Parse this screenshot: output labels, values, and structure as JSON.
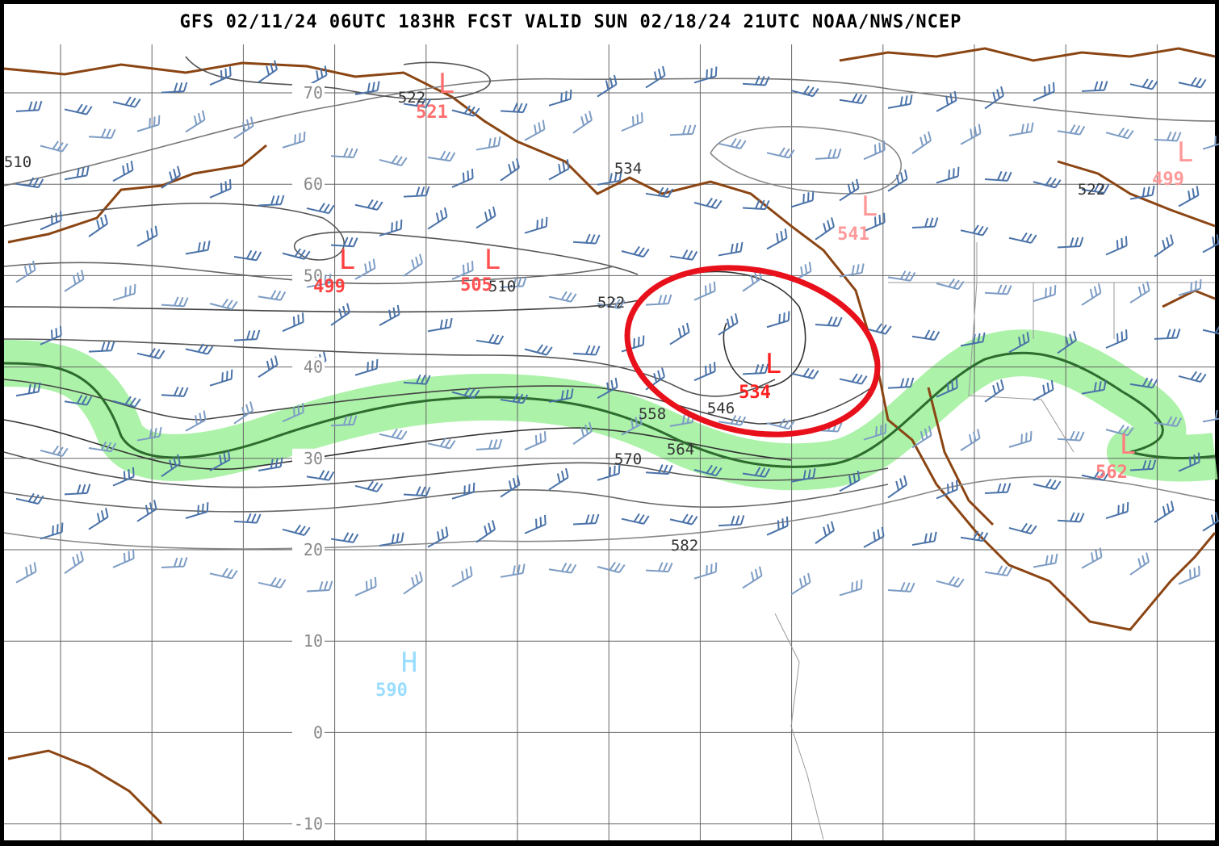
{
  "header": {
    "title": "GFS 02/11/24 06UTC 183HR FCST VALID SUN 02/18/24 21UTC NOAA/NWS/NCEP"
  },
  "map": {
    "latitude_labels": [
      "70",
      "60",
      "50",
      "40",
      "30",
      "20",
      "10",
      "0",
      "-10"
    ],
    "contour_labels": [
      "522",
      "534",
      "510",
      "522",
      "558",
      "546",
      "564",
      "570",
      "582",
      "510",
      "522"
    ],
    "centers": [
      {
        "symbol": "L",
        "value": "521"
      },
      {
        "symbol": "L",
        "value": "499"
      },
      {
        "symbol": "L",
        "value": "505"
      },
      {
        "symbol": "L",
        "value": "534"
      },
      {
        "symbol": "L",
        "value": "541"
      },
      {
        "symbol": "L",
        "value": "499"
      },
      {
        "symbol": "L",
        "value": "562"
      },
      {
        "symbol": "H",
        "value": "590"
      }
    ]
  }
}
